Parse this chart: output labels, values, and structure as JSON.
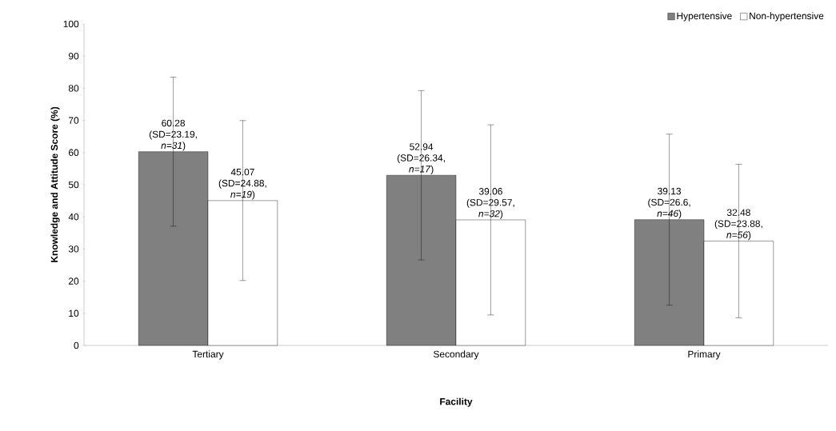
{
  "chart_data": {
    "type": "bar",
    "xlabel": "Facility",
    "ylabel": "Knowledge and Attitude Score (%)",
    "categories": [
      "Tertiary",
      "Secondary",
      "Primary"
    ],
    "series": [
      {
        "name": "Hypertensive",
        "color": "#808080",
        "values": [
          60.28,
          52.94,
          39.13
        ],
        "errors": [
          23.19,
          26.34,
          26.6
        ],
        "value_labels": [
          "60.28 (SD=23.19, *n=31*)",
          "52.94 (SD=26.34, *n=17*)",
          "39.13 (SD=26.6, *n=46*)"
        ]
      },
      {
        "name": "Non-hypertensive",
        "color": "#ffffff",
        "values": [
          45.07,
          39.06,
          32.48
        ],
        "errors": [
          24.88,
          29.57,
          23.88
        ],
        "value_labels": [
          "45.07 (SD=24.88, *n=19*)",
          "39.06 (SD=29.57, *n=32*)",
          "32.48 (SD=23.88, *n=56*)"
        ]
      }
    ],
    "ylim": [
      0,
      100
    ],
    "yticks": [
      0,
      10,
      20,
      30,
      40,
      50,
      60,
      70,
      80,
      90,
      100
    ],
    "grid": false,
    "legend": "top right"
  }
}
